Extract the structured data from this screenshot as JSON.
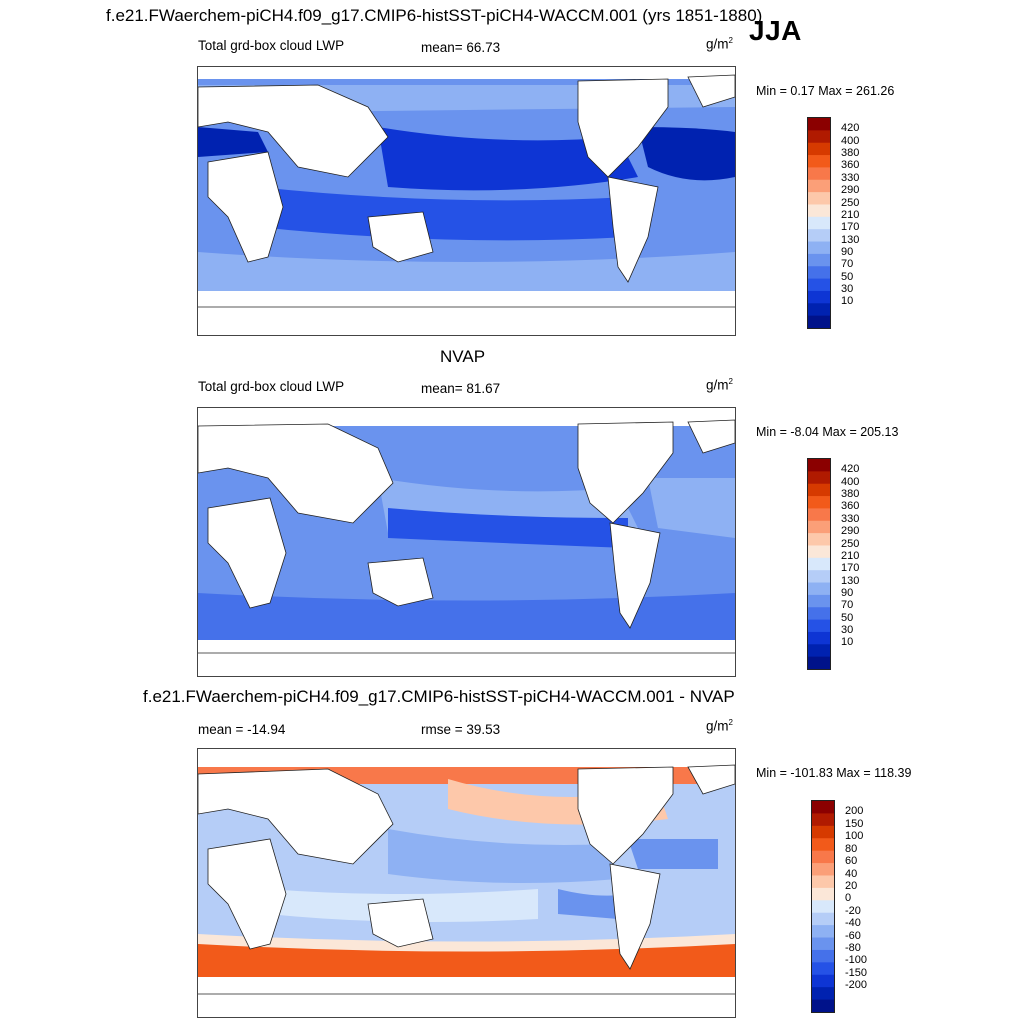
{
  "header": {
    "case_title": "f.e21.FWaerchem-piCH4.f09_g17.CMIP6-histSST-piCH4-WACCM.001 (yrs 1851-1880)",
    "season": "JJA"
  },
  "panels": [
    {
      "id": "model",
      "title": "",
      "left_label": "Total grd-box cloud LWP",
      "stat_label": "mean=  66.73",
      "units_base": "g/m",
      "units_exp": "2",
      "min_max": "Min =   0.17 Max = 261.26"
    },
    {
      "id": "obs",
      "title": "NVAP",
      "left_label": "Total grd-box cloud LWP",
      "stat_label": "mean=  81.67",
      "units_base": "g/m",
      "units_exp": "2",
      "min_max": "Min =  -8.04 Max = 205.13"
    },
    {
      "id": "diff",
      "title": "f.e21.FWaerchem-piCH4.f09_g17.CMIP6-histSST-piCH4-WACCM.001 - NVAP",
      "left_label": "mean = -14.94",
      "stat_label": "rmse =  39.53",
      "units_base": "g/m",
      "units_exp": "2",
      "min_max": "Min = -101.83 Max = 118.39"
    }
  ],
  "colorbars": {
    "abs": {
      "labels": [
        "420",
        "400",
        "380",
        "360",
        "330",
        "290",
        "250",
        "210",
        "170",
        "130",
        "90",
        "70",
        "50",
        "30",
        "10"
      ],
      "colors": [
        "#8b0000",
        "#b01a00",
        "#d63a00",
        "#f25a1a",
        "#f8784a",
        "#fb9f78",
        "#fdc8aa",
        "#fbe7d8",
        "#d8e8fb",
        "#b5cdf7",
        "#8eb1f3",
        "#6a93ee",
        "#4571ea",
        "#2552e6",
        "#0e35d4",
        "#0022b0",
        "#00128a"
      ]
    },
    "diff": {
      "labels": [
        "200",
        "150",
        "100",
        "80",
        "60",
        "40",
        "20",
        "0",
        "-20",
        "-40",
        "-60",
        "-80",
        "-100",
        "-150",
        "-200"
      ],
      "colors": [
        "#8b0000",
        "#b01a00",
        "#d63a00",
        "#f25a1a",
        "#f8784a",
        "#fb9f78",
        "#fdc8aa",
        "#fbe7d8",
        "#d8e8fb",
        "#b5cdf7",
        "#8eb1f3",
        "#6a93ee",
        "#4571ea",
        "#2552e6",
        "#0e35d4",
        "#0022b0",
        "#00128a"
      ]
    }
  },
  "chart_data": [
    {
      "type": "heatmap",
      "title": "f.e21.FWaerchem-piCH4.f09_g17.CMIP6-histSST-piCH4-WACCM.001 (yrs 1851-1880)",
      "season": "JJA",
      "variable": "Total grd-box cloud LWP",
      "units": "g/m2",
      "mean": 66.73,
      "min": 0.17,
      "max": 261.26,
      "contour_levels": [
        10,
        30,
        50,
        70,
        90,
        130,
        170,
        210,
        250,
        290,
        330,
        360,
        380,
        400,
        420
      ]
    },
    {
      "type": "heatmap",
      "title": "NVAP",
      "variable": "Total grd-box cloud LWP",
      "units": "g/m2",
      "mean": 81.67,
      "min": -8.04,
      "max": 205.13,
      "contour_levels": [
        10,
        30,
        50,
        70,
        90,
        130,
        170,
        210,
        250,
        290,
        330,
        360,
        380,
        400,
        420
      ]
    },
    {
      "type": "heatmap",
      "title": "f.e21.FWaerchem-piCH4.f09_g17.CMIP6-histSST-piCH4-WACCM.001 - NVAP",
      "units": "g/m2",
      "mean": -14.94,
      "rmse": 39.53,
      "min": -101.83,
      "max": 118.39,
      "contour_levels": [
        -200,
        -150,
        -100,
        -80,
        -60,
        -40,
        -20,
        0,
        20,
        40,
        60,
        80,
        100,
        150,
        200
      ]
    }
  ]
}
